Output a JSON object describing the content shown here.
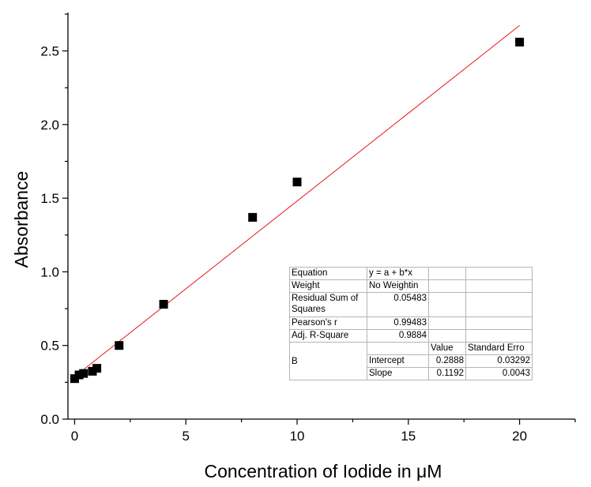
{
  "chart_data": {
    "type": "scatter",
    "xlabel_prefix": "Concentration of Iodide in ",
    "xlabel_unit": "μM",
    "ylabel": "Absorbance",
    "xlim": [
      -0.3,
      22.5
    ],
    "ylim": [
      0.0,
      2.76
    ],
    "x_ticks": [
      0,
      5,
      10,
      15,
      20
    ],
    "y_ticks": [
      "0.0",
      "0.5",
      "1.0",
      "1.5",
      "2.0",
      "2.5"
    ],
    "y_tick_values": [
      0.0,
      0.5,
      1.0,
      1.5,
      2.0,
      2.5
    ],
    "x_minor_step": 2.5,
    "y_minor_step": 0.25,
    "grid": false,
    "series": [
      {
        "type": "scatter",
        "marker": "square",
        "color": "#000000",
        "x": [
          0,
          0.2,
          0.4,
          0.8,
          1,
          2,
          4,
          8,
          10,
          20
        ],
        "y": [
          0.275,
          0.3,
          0.31,
          0.325,
          0.345,
          0.5,
          0.78,
          1.37,
          1.61,
          2.56
        ]
      },
      {
        "type": "line",
        "color": "#e8141b",
        "x_range": [
          0,
          20
        ],
        "intercept": 0.2888,
        "slope": 0.1192
      }
    ]
  },
  "fit_table": {
    "equation_label": "Equation",
    "equation_value": "y = a + b*x",
    "weight_label": "Weight",
    "weight_value": "No Weightin",
    "rss_label": "Residual Sum of Squares",
    "rss_value": "0.05483",
    "pearson_label": "Pearson's r",
    "pearson_value": "0.99483",
    "adjr_label": "Adj. R-Square",
    "adjr_value": "0.9884",
    "col_value": "Value",
    "col_stderr": "Standard Erro",
    "param_name": "B",
    "intercept_label": "Intercept",
    "intercept_value": "0.2888",
    "intercept_stderr": "0.03292",
    "slope_label": "Slope",
    "slope_value": "0.1192",
    "slope_stderr": "0.0043"
  }
}
